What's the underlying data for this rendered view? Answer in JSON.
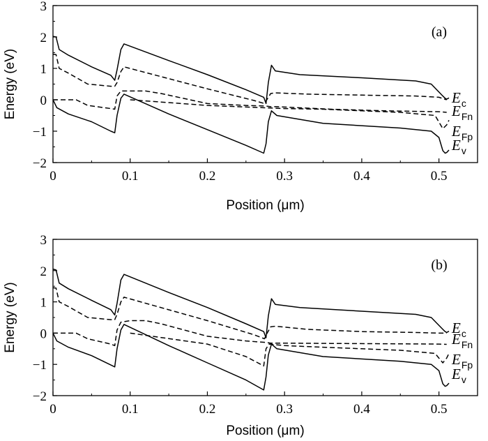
{
  "chart_data": [
    {
      "type": "line",
      "panel_label": "(a)",
      "xlabel": "Position (μm)",
      "ylabel": "Energy (eV)",
      "xlim": [
        0,
        0.55
      ],
      "ylim": [
        -2,
        3
      ],
      "xticks": [
        "0",
        "0.1",
        "0.2",
        "0.3",
        "0.4",
        "0.5"
      ],
      "yticks": [
        "−2",
        "−1",
        "0",
        "1",
        "2",
        "3"
      ],
      "grid": false,
      "curve_labels": [
        {
          "symbol": "E",
          "sub": "c"
        },
        {
          "symbol": "E",
          "sub": "Fn"
        },
        {
          "symbol": "E",
          "sub": "Fp"
        },
        {
          "symbol": "E",
          "sub": "v"
        }
      ],
      "series": [
        {
          "style": "solid",
          "points": [
            [
              0,
              2.02
            ],
            [
              0.004,
              2.0
            ],
            [
              0.008,
              1.6
            ],
            [
              0.02,
              1.42
            ],
            [
              0.05,
              1.05
            ],
            [
              0.075,
              0.78
            ],
            [
              0.08,
              0.62
            ],
            [
              0.083,
              0.95
            ],
            [
              0.088,
              1.6
            ],
            [
              0.092,
              1.78
            ],
            [
              0.15,
              1.25
            ],
            [
              0.2,
              0.8
            ],
            [
              0.25,
              0.32
            ],
            [
              0.273,
              0.08
            ],
            [
              0.276,
              -0.12
            ],
            [
              0.279,
              0.55
            ],
            [
              0.283,
              1.1
            ],
            [
              0.288,
              0.92
            ],
            [
              0.32,
              0.8
            ],
            [
              0.4,
              0.7
            ],
            [
              0.47,
              0.6
            ],
            [
              0.49,
              0.5
            ],
            [
              0.505,
              0.12
            ],
            [
              0.508,
              0.05
            ],
            [
              0.51,
              0.02
            ],
            [
              0.513,
              0.06
            ]
          ]
        },
        {
          "style": "dashed",
          "points": [
            [
              0,
              1.45
            ],
            [
              0.004,
              1.44
            ],
            [
              0.008,
              1.0
            ],
            [
              0.02,
              0.85
            ],
            [
              0.045,
              0.5
            ],
            [
              0.075,
              0.43
            ],
            [
              0.08,
              0.43
            ],
            [
              0.083,
              0.55
            ],
            [
              0.088,
              0.9
            ],
            [
              0.092,
              1.05
            ],
            [
              0.2,
              0.35
            ],
            [
              0.26,
              -0.02
            ],
            [
              0.274,
              -0.12
            ],
            [
              0.277,
              0.0
            ],
            [
              0.282,
              0.2
            ],
            [
              0.288,
              0.22
            ],
            [
              0.33,
              0.18
            ],
            [
              0.4,
              0.15
            ],
            [
              0.47,
              0.12
            ],
            [
              0.5,
              0.08
            ],
            [
              0.51,
              0.0
            ]
          ]
        },
        {
          "style": "dashed",
          "points": [
            [
              0,
              0.0
            ],
            [
              0.03,
              0.0
            ],
            [
              0.045,
              -0.18
            ],
            [
              0.075,
              -0.28
            ],
            [
              0.08,
              -0.3
            ],
            [
              0.083,
              0.12
            ],
            [
              0.088,
              0.28
            ],
            [
              0.1,
              0.28
            ],
            [
              0.12,
              0.28
            ],
            [
              0.14,
              0.2
            ],
            [
              0.2,
              -0.12
            ],
            [
              0.25,
              -0.18
            ],
            [
              0.276,
              -0.2
            ],
            [
              0.282,
              -0.22
            ],
            [
              0.29,
              -0.22
            ],
            [
              0.36,
              -0.3
            ],
            [
              0.43,
              -0.35
            ],
            [
              0.5,
              -0.38
            ],
            [
              0.51,
              -0.4
            ]
          ]
        },
        {
          "style": "dashed",
          "points": [
            [
              0.1,
              0.0
            ],
            [
              0.2,
              -0.18
            ],
            [
              0.3,
              -0.28
            ],
            [
              0.35,
              -0.3
            ],
            [
              0.4,
              -0.35
            ],
            [
              0.45,
              -0.4
            ],
            [
              0.495,
              -0.5
            ],
            [
              0.505,
              -0.92
            ],
            [
              0.51,
              -0.8
            ],
            [
              0.513,
              -0.65
            ]
          ]
        },
        {
          "style": "solid",
          "points": [
            [
              0,
              0.0
            ],
            [
              0.005,
              -0.25
            ],
            [
              0.02,
              -0.45
            ],
            [
              0.05,
              -0.7
            ],
            [
              0.075,
              -1.0
            ],
            [
              0.08,
              -1.05
            ],
            [
              0.083,
              -0.5
            ],
            [
              0.088,
              0.05
            ],
            [
              0.092,
              0.18
            ],
            [
              0.15,
              -0.45
            ],
            [
              0.2,
              -0.95
            ],
            [
              0.25,
              -1.45
            ],
            [
              0.273,
              -1.7
            ],
            [
              0.276,
              -1.4
            ],
            [
              0.279,
              -0.7
            ],
            [
              0.283,
              -0.35
            ],
            [
              0.29,
              -0.5
            ],
            [
              0.35,
              -0.75
            ],
            [
              0.45,
              -0.9
            ],
            [
              0.49,
              -1.0
            ],
            [
              0.5,
              -1.2
            ],
            [
              0.505,
              -1.62
            ],
            [
              0.508,
              -1.7
            ],
            [
              0.51,
              -1.68
            ],
            [
              0.513,
              -1.6
            ]
          ]
        }
      ]
    },
    {
      "type": "line",
      "panel_label": "(b)",
      "xlabel": "Position (μm)",
      "ylabel": "Energy (eV)",
      "xlim": [
        0,
        0.55
      ],
      "ylim": [
        -2,
        3
      ],
      "xticks": [
        "0",
        "0.1",
        "0.2",
        "0.3",
        "0.4",
        "0.5"
      ],
      "yticks": [
        "−2",
        "−1",
        "0",
        "1",
        "2",
        "3"
      ],
      "grid": false,
      "curve_labels": [
        {
          "symbol": "E",
          "sub": "c"
        },
        {
          "symbol": "E",
          "sub": "Fn"
        },
        {
          "symbol": "E",
          "sub": "Fp"
        },
        {
          "symbol": "E",
          "sub": "v"
        }
      ],
      "series": [
        {
          "style": "solid",
          "points": [
            [
              0,
              2.05
            ],
            [
              0.004,
              2.02
            ],
            [
              0.008,
              1.6
            ],
            [
              0.02,
              1.42
            ],
            [
              0.05,
              1.05
            ],
            [
              0.075,
              0.75
            ],
            [
              0.08,
              0.58
            ],
            [
              0.083,
              0.95
            ],
            [
              0.088,
              1.7
            ],
            [
              0.092,
              1.88
            ],
            [
              0.15,
              1.3
            ],
            [
              0.2,
              0.82
            ],
            [
              0.25,
              0.3
            ],
            [
              0.273,
              0.05
            ],
            [
              0.276,
              -0.15
            ],
            [
              0.279,
              0.55
            ],
            [
              0.283,
              1.1
            ],
            [
              0.288,
              0.92
            ],
            [
              0.32,
              0.82
            ],
            [
              0.4,
              0.7
            ],
            [
              0.47,
              0.6
            ],
            [
              0.49,
              0.5
            ],
            [
              0.505,
              0.12
            ],
            [
              0.508,
              0.05
            ],
            [
              0.51,
              0.02
            ],
            [
              0.513,
              0.06
            ]
          ]
        },
        {
          "style": "dashed",
          "points": [
            [
              0,
              1.45
            ],
            [
              0.004,
              1.44
            ],
            [
              0.008,
              1.0
            ],
            [
              0.02,
              0.85
            ],
            [
              0.045,
              0.5
            ],
            [
              0.075,
              0.43
            ],
            [
              0.08,
              0.43
            ],
            [
              0.083,
              0.6
            ],
            [
              0.088,
              1.0
            ],
            [
              0.092,
              1.15
            ],
            [
              0.2,
              0.4
            ],
            [
              0.26,
              -0.05
            ],
            [
              0.274,
              -0.18
            ],
            [
              0.277,
              -0.02
            ],
            [
              0.282,
              0.2
            ],
            [
              0.288,
              0.22
            ],
            [
              0.33,
              0.12
            ],
            [
              0.4,
              0.05
            ],
            [
              0.47,
              0.02
            ],
            [
              0.5,
              0.0
            ],
            [
              0.51,
              0.0
            ]
          ]
        },
        {
          "style": "dashed",
          "points": [
            [
              0,
              0.0
            ],
            [
              0.03,
              0.0
            ],
            [
              0.045,
              -0.18
            ],
            [
              0.075,
              -0.35
            ],
            [
              0.08,
              -0.4
            ],
            [
              0.083,
              0.1
            ],
            [
              0.088,
              0.35
            ],
            [
              0.1,
              0.4
            ],
            [
              0.12,
              0.4
            ],
            [
              0.14,
              0.3
            ],
            [
              0.2,
              -0.1
            ],
            [
              0.25,
              -0.25
            ],
            [
              0.276,
              -0.3
            ],
            [
              0.282,
              -0.32
            ],
            [
              0.29,
              -0.32
            ],
            [
              0.36,
              -0.33
            ],
            [
              0.43,
              -0.34
            ],
            [
              0.5,
              -0.35
            ],
            [
              0.51,
              -0.36
            ]
          ]
        },
        {
          "style": "dashed",
          "points": [
            [
              0.1,
              0.0
            ],
            [
              0.2,
              -0.35
            ],
            [
              0.25,
              -0.75
            ],
            [
              0.273,
              -1.05
            ],
            [
              0.276,
              -0.5
            ],
            [
              0.28,
              -0.35
            ],
            [
              0.3,
              -0.4
            ],
            [
              0.35,
              -0.45
            ],
            [
              0.4,
              -0.5
            ],
            [
              0.45,
              -0.55
            ],
            [
              0.495,
              -0.65
            ],
            [
              0.505,
              -0.95
            ],
            [
              0.51,
              -0.8
            ],
            [
              0.513,
              -0.65
            ]
          ]
        },
        {
          "style": "solid",
          "points": [
            [
              0,
              0.0
            ],
            [
              0.005,
              -0.25
            ],
            [
              0.02,
              -0.45
            ],
            [
              0.05,
              -0.72
            ],
            [
              0.075,
              -1.02
            ],
            [
              0.08,
              -1.08
            ],
            [
              0.083,
              -0.5
            ],
            [
              0.088,
              0.1
            ],
            [
              0.092,
              0.28
            ],
            [
              0.15,
              -0.4
            ],
            [
              0.2,
              -0.95
            ],
            [
              0.25,
              -1.5
            ],
            [
              0.273,
              -1.82
            ],
            [
              0.276,
              -1.4
            ],
            [
              0.279,
              -0.7
            ],
            [
              0.283,
              -0.35
            ],
            [
              0.29,
              -0.5
            ],
            [
              0.35,
              -0.75
            ],
            [
              0.45,
              -0.9
            ],
            [
              0.49,
              -1.0
            ],
            [
              0.5,
              -1.2
            ],
            [
              0.505,
              -1.62
            ],
            [
              0.508,
              -1.7
            ],
            [
              0.51,
              -1.68
            ],
            [
              0.513,
              -1.6
            ]
          ]
        }
      ]
    }
  ]
}
